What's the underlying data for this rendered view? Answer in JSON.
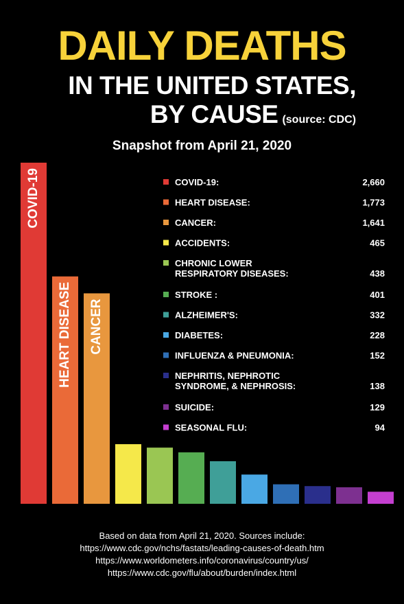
{
  "header": {
    "title": "DAILY DEATHS",
    "subtitle_line1": "IN THE UNITED STATES,",
    "subtitle_line2": "BY CAUSE",
    "source": "(source: CDC)",
    "snapshot": "Snapshot from April 21, 2020"
  },
  "chart_data": {
    "type": "bar",
    "categories": [
      "COVID-19",
      "HEART DISEASE",
      "CANCER",
      "ACCIDENTS",
      "CHRONIC LOWER RESPIRATORY DISEASES",
      "STROKE",
      "ALZHEIMER'S",
      "DIABETES",
      "INFLUENZA & PNEUMONIA",
      "NEPHRITIS, NEPHROTIC SYNDROME, & NEPHROSIS",
      "SUICIDE",
      "SEASONAL FLU"
    ],
    "bar_labels": [
      "COVID-19",
      "HEART DISEASE",
      "CANCER",
      "",
      "",
      "",
      "",
      "",
      "",
      "",
      "",
      ""
    ],
    "legend_lines": [
      [
        "COVID-19:"
      ],
      [
        "HEART DISEASE:"
      ],
      [
        "CANCER:"
      ],
      [
        "ACCIDENTS:"
      ],
      [
        "CHRONIC LOWER",
        "RESPIRATORY DISEASES:"
      ],
      [
        "STROKE :"
      ],
      [
        "ALZHEIMER'S:"
      ],
      [
        "DIABETES:"
      ],
      [
        "INFLUENZA & PNEUMONIA:"
      ],
      [
        "NEPHRITIS, NEPHROTIC",
        "SYNDROME, & NEPHROSIS:"
      ],
      [
        "SUICIDE:"
      ],
      [
        "SEASONAL FLU:"
      ]
    ],
    "values": [
      2660,
      1773,
      1641,
      465,
      438,
      401,
      332,
      228,
      152,
      138,
      129,
      94
    ],
    "value_labels": [
      "2,660",
      "1,773",
      "1,641",
      "465",
      "438",
      "401",
      "332",
      "228",
      "152",
      "138",
      "129",
      "94"
    ],
    "colors": [
      "#e03a35",
      "#ea6a38",
      "#e8973e",
      "#f5e84a",
      "#9ac653",
      "#56ad52",
      "#3f9f98",
      "#4aa8e4",
      "#2f6fb6",
      "#2a2f8c",
      "#7d3090",
      "#c43fd0"
    ],
    "ylim": [
      0,
      2660
    ],
    "legend_position": "top-right"
  },
  "footer": {
    "line1": "Based on data from April 21, 2020. Sources include:",
    "line2": "https://www.cdc.gov/nchs/fastats/leading-causes-of-death.htm",
    "line3": "https://www.worldometers.info/coronavirus/country/us/",
    "line4": "https://www.cdc.gov/flu/about/burden/index.html"
  }
}
